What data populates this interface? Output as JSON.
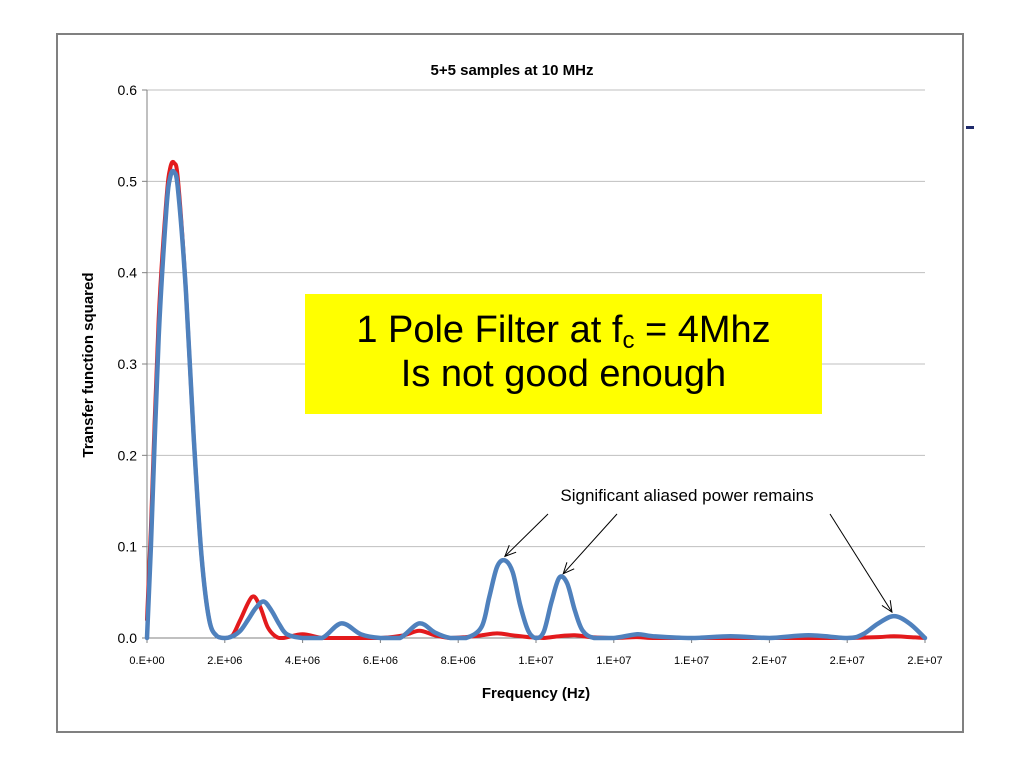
{
  "chart_data": {
    "type": "line",
    "title": "5+5 samples at 10 MHz",
    "xlabel": "Frequency (Hz)",
    "ylabel": "Transfer function squared",
    "xlim": [
      0,
      20000000
    ],
    "ylim": [
      0,
      0.6
    ],
    "grid": true,
    "y_tick_labels": [
      "0.0",
      "0.1",
      "0.2",
      "0.3",
      "0.4",
      "0.5",
      "0.6"
    ],
    "x_tick_labels": [
      "0.E+00",
      "2.E+06",
      "4.E+06",
      "6.E+06",
      "8.E+06",
      "1.E+07",
      "1.E+07",
      "1.E+07",
      "2.E+07",
      "2.E+07",
      "2.E+07"
    ],
    "x_tick_values": [
      0,
      2000000,
      4000000,
      6000000,
      8000000,
      10000000,
      12000000,
      14000000,
      16000000,
      18000000,
      20000000
    ],
    "colors": {
      "red_series": "#e31a1c",
      "blue_series": "#4f81bd",
      "grid": "#bfbfbf",
      "callout_bg": "#ffff00"
    },
    "series": [
      {
        "color": "red",
        "x": [
          0,
          100000,
          300000,
          500000,
          600000,
          700000,
          800000,
          1000000,
          1200000,
          1400000,
          1600000,
          1800000,
          2000000,
          2200000,
          2400000,
          2700000,
          2900000,
          3100000,
          3300000,
          3500000,
          4000000,
          4500000,
          5000000,
          5500000,
          6000000,
          6600000,
          7000000,
          7400000,
          7800000,
          8200000,
          8600000,
          9000000,
          9400000,
          9800000,
          10200000,
          10600000,
          11000000,
          11400000,
          12000000,
          12600000,
          13000000,
          14000000,
          15000000,
          16000000,
          17000000,
          18000000,
          18800000,
          19200000,
          19600000,
          20000000
        ],
        "y": [
          0.02,
          0.12,
          0.35,
          0.48,
          0.515,
          0.52,
          0.5,
          0.38,
          0.22,
          0.09,
          0.02,
          0.002,
          0.0,
          0.003,
          0.02,
          0.045,
          0.035,
          0.012,
          0.002,
          0.0,
          0.004,
          0.0,
          0.0,
          0.0,
          0.0,
          0.003,
          0.008,
          0.003,
          0.0,
          0.001,
          0.003,
          0.005,
          0.003,
          0.001,
          0.0,
          0.002,
          0.003,
          0.001,
          0.0,
          0.001,
          0.0,
          0.0,
          0.0,
          0.0,
          0.0,
          0.0,
          0.001,
          0.002,
          0.001,
          0.0
        ]
      },
      {
        "color": "blue",
        "x": [
          0,
          100000,
          300000,
          500000,
          600000,
          700000,
          800000,
          1000000,
          1200000,
          1400000,
          1600000,
          1800000,
          2000000,
          2200000,
          2400000,
          2600000,
          2800000,
          3000000,
          3200000,
          3400000,
          3600000,
          4000000,
          4500000,
          5000000,
          5500000,
          6000000,
          6500000,
          7000000,
          7400000,
          7800000,
          8200000,
          8600000,
          8800000,
          9000000,
          9200000,
          9400000,
          9600000,
          9800000,
          10000000,
          10200000,
          10400000,
          10600000,
          10800000,
          11000000,
          11200000,
          11500000,
          12000000,
          12600000,
          13000000,
          14000000,
          15000000,
          16000000,
          17000000,
          18000000,
          18400000,
          18800000,
          19200000,
          19600000,
          20000000
        ],
        "y": [
          0.0,
          0.1,
          0.33,
          0.47,
          0.505,
          0.51,
          0.49,
          0.38,
          0.22,
          0.09,
          0.02,
          0.002,
          0.0,
          0.002,
          0.008,
          0.02,
          0.033,
          0.04,
          0.03,
          0.015,
          0.004,
          0.0,
          0.0,
          0.016,
          0.004,
          0.0,
          0.0,
          0.016,
          0.006,
          0.0,
          0.0,
          0.012,
          0.045,
          0.078,
          0.085,
          0.072,
          0.035,
          0.008,
          0.0,
          0.007,
          0.04,
          0.066,
          0.06,
          0.03,
          0.008,
          0.0,
          0.0,
          0.004,
          0.002,
          0.0,
          0.002,
          0.0,
          0.003,
          0.0,
          0.004,
          0.016,
          0.024,
          0.016,
          0.0
        ]
      }
    ],
    "annotation": {
      "text": "Significant aliased power remains",
      "arrow_targets": [
        {
          "x": 9200000,
          "y": 0.085
        },
        {
          "x": 10700000,
          "y": 0.066
        },
        {
          "x": 19150000,
          "y": 0.024
        }
      ]
    }
  },
  "callout": {
    "line1_prefix": "1 Pole Filter at f",
    "line1_sub": "c",
    "line1_suffix": " = 4Mhz",
    "line2": "Is not good enough"
  }
}
